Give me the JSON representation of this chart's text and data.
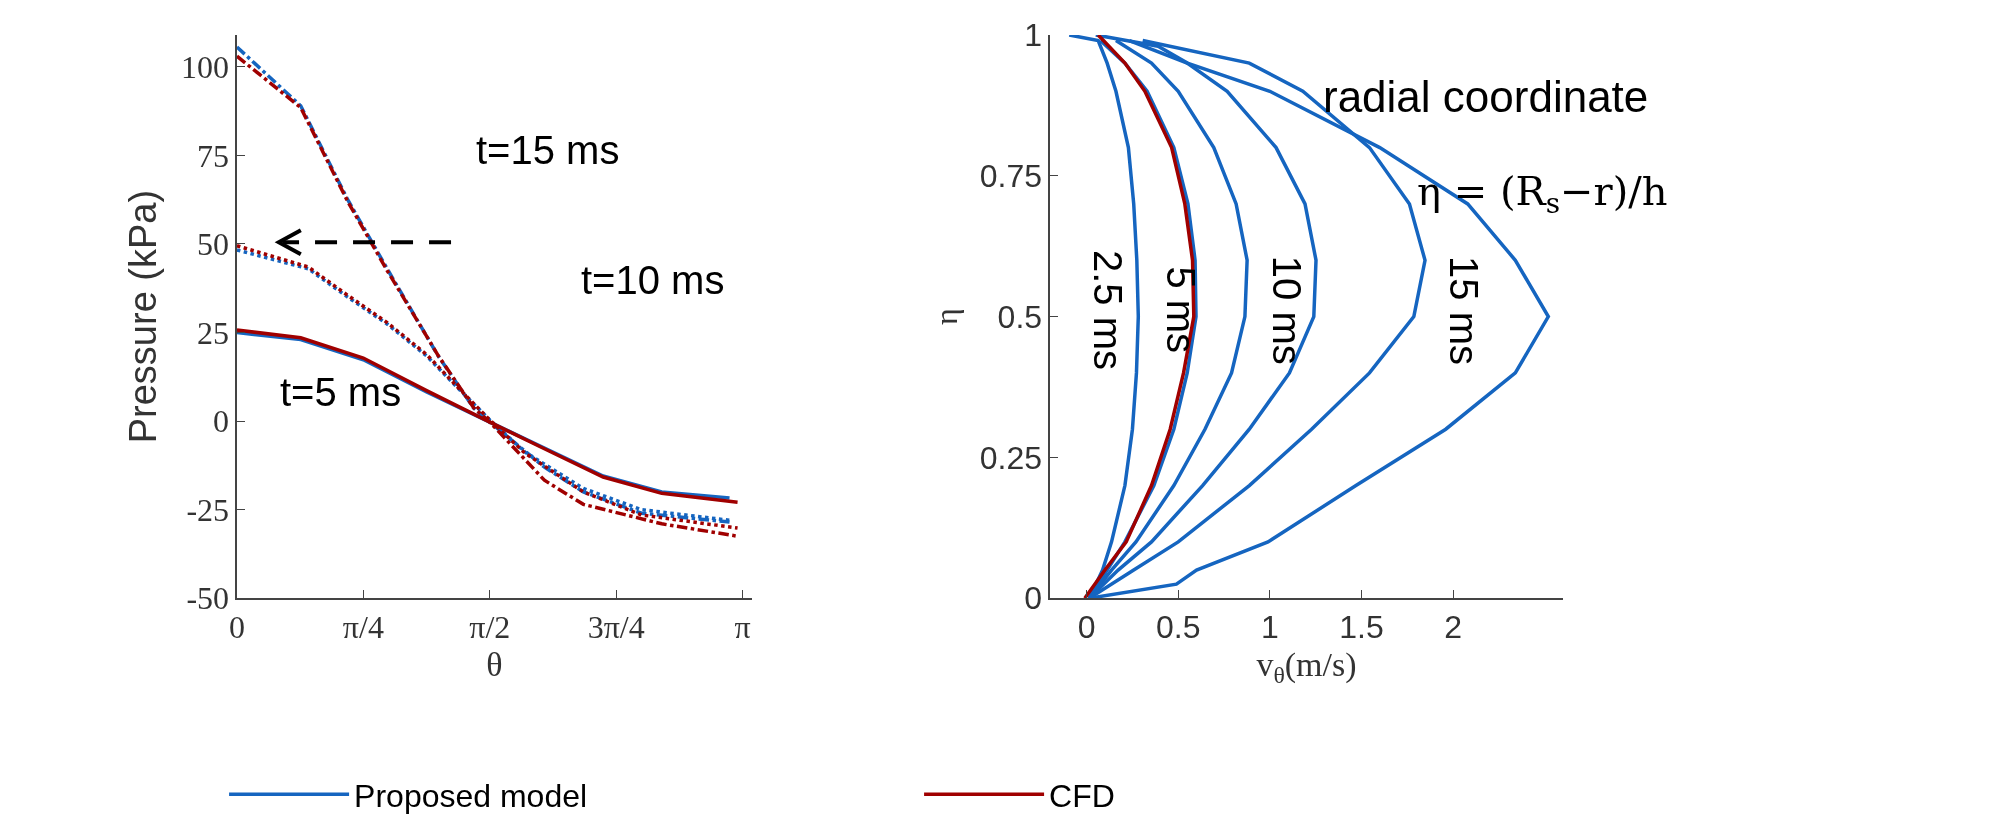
{
  "chart_data": [
    {
      "type": "line",
      "xlabel": "θ",
      "ylabel": "Pressure (kPa)",
      "xlim": [
        0,
        3.2
      ],
      "xticks": [
        0,
        {
          "value": 0.7854,
          "label": "π/4"
        },
        {
          "value": 1.5708,
          "label": "π/2"
        },
        {
          "value": 2.3562,
          "label": "3π/4"
        },
        {
          "value": 3.1416,
          "label": "π"
        }
      ],
      "ylim": [
        -50,
        109
      ],
      "yticks": [
        -50,
        -25,
        0,
        25,
        50,
        75,
        100
      ],
      "grid": false,
      "legend": "bottom",
      "annotations": [
        "t=15 ms",
        "t=10 ms",
        "t=5 ms"
      ],
      "series": [
        {
          "name": "Proposed model",
          "color": "#1565c0",
          "line_style": "solid",
          "x": [
            0,
            0.396,
            0.785,
            1.178,
            1.571,
            1.91,
            2.275,
            2.639,
            3.06
          ],
          "values": [
            25,
            23,
            17.3,
            8.2,
            -0.3,
            -7.6,
            -15.5,
            -20,
            -21.7
          ]
        },
        {
          "color": "#1565c0",
          "line_style": "dotted",
          "x": [
            0,
            0.443,
            0.688,
            0.933,
            1.178,
            1.373,
            1.571,
            1.788,
            2.152,
            2.513,
            3.06
          ],
          "values": [
            48.3,
            43,
            35,
            27.4,
            18.4,
            9.3,
            0.3,
            -8.7,
            -19,
            -25,
            -28
          ]
        },
        {
          "color": "#1565c0",
          "line_style": "dashdot",
          "x": [
            0,
            0.396,
            0.688,
            0.933,
            1.25,
            1.47,
            1.571,
            1.91,
            2.152,
            2.513,
            3.06
          ],
          "values": [
            105.6,
            89,
            62.5,
            43,
            18.4,
            3.7,
            -0.3,
            -13,
            -20,
            -26,
            -28.5
          ]
        },
        {
          "name": "CFD",
          "color": "#a00000",
          "line_style": "solid",
          "x": [
            0,
            0.396,
            0.785,
            1.178,
            1.571,
            1.91,
            2.275,
            2.639,
            3.11
          ],
          "values": [
            25.7,
            23.5,
            17.8,
            8.6,
            -0.3,
            -7.8,
            -15.8,
            -20.4,
            -22.9
          ]
        },
        {
          "color": "#a00000",
          "line_style": "dotted",
          "x": [
            0,
            0.443,
            0.688,
            0.933,
            1.178,
            1.373,
            1.571,
            1.788,
            2.152,
            2.513,
            3.11
          ],
          "values": [
            49.5,
            43.5,
            35.5,
            27.8,
            18.8,
            9.5,
            0.3,
            -9,
            -20,
            -26.5,
            -30.2
          ]
        },
        {
          "color": "#a00000",
          "line_style": "dashdot",
          "x": [
            0,
            0.396,
            0.688,
            0.933,
            1.25,
            1.47,
            1.571,
            1.91,
            2.152,
            2.639,
            3.11
          ],
          "values": [
            103,
            88.5,
            62,
            42.5,
            18.5,
            3.8,
            -0.3,
            -16.7,
            -23.5,
            -29,
            -32.5
          ]
        }
      ]
    },
    {
      "type": "line",
      "xlabel": "v$_{θ}$(m/s)",
      "ylabel": "η",
      "xlim": [
        -0.2,
        2.6
      ],
      "xticks": [
        0,
        0.5,
        1,
        1.5,
        2
      ],
      "ylim": [
        0,
        1
      ],
      "yticks": [
        0,
        0.25,
        0.5,
        0.75,
        1
      ],
      "grid": false,
      "legend": false,
      "annotations": [
        "radial coordinate",
        "η = (R$_{s}$−r)/h",
        "2.5 ms",
        "5 ms",
        "10 ms",
        "15 ms"
      ],
      "series": [
        {
          "color": "#1565c0",
          "line_style": "solid",
          "x": [
            0.015,
            0.087,
            0.136,
            0.209,
            0.25,
            0.272,
            0.282,
            0.274,
            0.257,
            0.228,
            0.16,
            0.112,
            0.063,
            -0.095
          ],
          "values": [
            0,
            0.05,
            0.1,
            0.2,
            0.3,
            0.4,
            0.5,
            0.6,
            0.7,
            0.8,
            0.9,
            0.95,
            0.99,
            1
          ]
        },
        {
          "color": "#1565c0",
          "line_style": "solid",
          "x": [
            0.015,
            0.112,
            0.209,
            0.367,
            0.476,
            0.549,
            0.597,
            0.592,
            0.553,
            0.476,
            0.33,
            0.209,
            0.075
          ],
          "values": [
            0,
            0.05,
            0.1,
            0.2,
            0.3,
            0.4,
            0.5,
            0.6,
            0.7,
            0.8,
            0.9,
            0.95,
            0.99
          ]
        },
        {
          "color": "#1565c0",
          "line_style": "solid",
          "x": [
            0.015,
            0.136,
            0.269,
            0.476,
            0.646,
            0.791,
            0.864,
            0.876,
            0.816,
            0.694,
            0.5,
            0.354,
            0.16
          ],
          "values": [
            0,
            0.05,
            0.1,
            0.2,
            0.3,
            0.4,
            0.5,
            0.6,
            0.7,
            0.8,
            0.9,
            0.95,
            0.99
          ]
        },
        {
          "color": "#1565c0",
          "line_style": "solid",
          "x": [
            0.015,
            0.172,
            0.354,
            0.633,
            0.888,
            1.107,
            1.24,
            1.252,
            1.192,
            1.034,
            0.767,
            0.549,
            0.233
          ],
          "values": [
            0,
            0.05,
            0.1,
            0.2,
            0.3,
            0.4,
            0.5,
            0.6,
            0.7,
            0.8,
            0.9,
            0.95,
            0.99
          ]
        },
        {
          "color": "#1565c0",
          "line_style": "solid",
          "x": [
            0.015,
            0.257,
            0.5,
            0.888,
            1.228,
            1.544,
            1.786,
            1.847,
            1.762,
            1.544,
            1.18,
            0.888,
            0.306
          ],
          "values": [
            0,
            0.05,
            0.1,
            0.2,
            0.3,
            0.4,
            0.5,
            0.6,
            0.7,
            0.8,
            0.9,
            0.95,
            0.99
          ]
        },
        {
          "color": "#1565c0",
          "line_style": "solid",
          "x": [
            0.015,
            0.49,
            0.6,
            0.99,
            1.47,
            1.96,
            2.34,
            2.52,
            2.34,
            2.08,
            1.6,
            1.0,
            0.55,
            0.39,
            0.05
          ],
          "values": [
            0,
            0.025,
            0.05,
            0.1,
            0.2,
            0.3,
            0.4,
            0.5,
            0.6,
            0.7,
            0.8,
            0.9,
            0.95,
            0.98,
            1
          ]
        },
        {
          "color": "#a00000",
          "line_style": "solid",
          "x": [
            -0.01,
            0.1,
            0.216,
            0.354,
            0.456,
            0.529,
            0.585,
            0.578,
            0.536,
            0.464,
            0.318,
            0.209,
            0.063
          ],
          "values": [
            0,
            0.05,
            0.1,
            0.2,
            0.3,
            0.4,
            0.5,
            0.6,
            0.7,
            0.8,
            0.9,
            0.95,
            1
          ]
        }
      ]
    }
  ]
}
